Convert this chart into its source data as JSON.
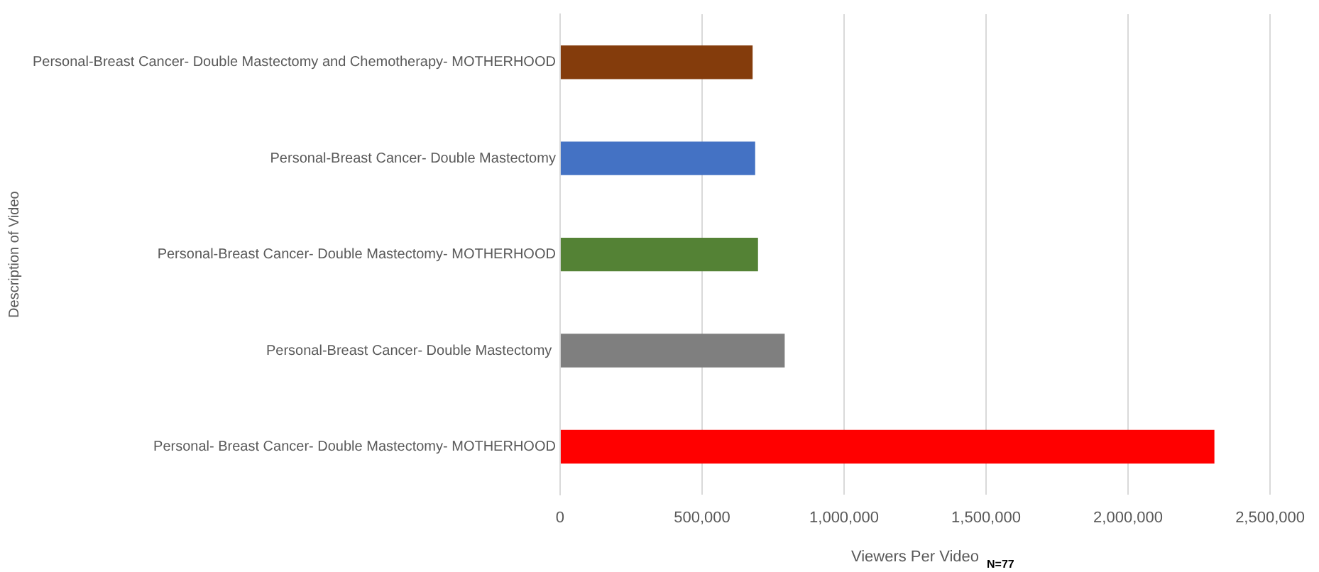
{
  "chart_data": {
    "type": "bar",
    "orientation": "horizontal",
    "xlabel": "Viewers Per Video",
    "ylabel": "Description of Video",
    "annotations": [
      "N=77"
    ],
    "categories": [
      "Personal-Breast Cancer- Double Mastectomy and Chemotherapy- MOTHERHOOD",
      "Personal-Breast Cancer- Double Mastectomy",
      "Personal-Breast Cancer- Double Mastectomy- MOTHERHOOD",
      "Personal-Breast Cancer- Double Mastectomy ",
      "Personal- Breast Cancer- Double Mastectomy- MOTHERHOOD"
    ],
    "values": [
      678000,
      687000,
      697000,
      791000,
      2304000
    ],
    "colors": [
      "#843c0c",
      "#4472c4",
      "#548235",
      "#7f7f7f",
      "#ff0000"
    ],
    "xlim": [
      0,
      2500000
    ],
    "xticks": [
      {
        "value": 0,
        "label": "0"
      },
      {
        "value": 500000,
        "label": "500,000"
      },
      {
        "value": 1000000,
        "label": "1,000,000"
      },
      {
        "value": 1500000,
        "label": "1,500,000"
      },
      {
        "value": 2000000,
        "label": "2,000,000"
      },
      {
        "value": 2500000,
        "label": "2,500,000"
      }
    ],
    "grid": "x",
    "legend": false
  }
}
